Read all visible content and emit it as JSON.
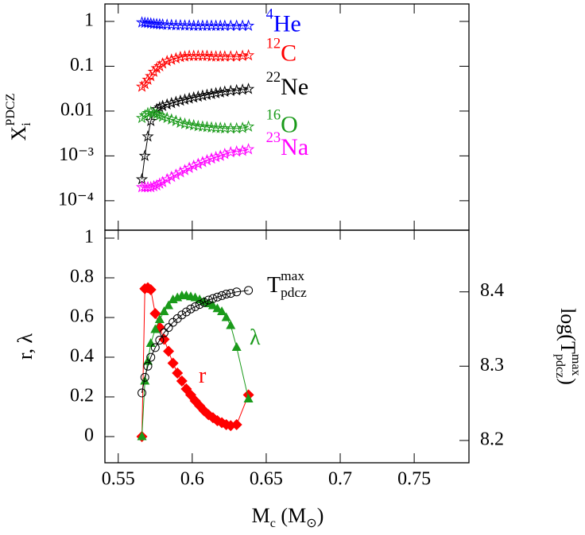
{
  "chart_data": [
    {
      "type": "line",
      "yscale": "log",
      "xlim": [
        0.541,
        0.787
      ],
      "xticks": [
        0.55,
        0.6,
        0.65,
        0.7,
        0.75
      ],
      "xtick_labels": false,
      "ylim": [
        2.2e-05,
        2.45
      ],
      "yticks": [
        1,
        0.1,
        0.01,
        {
          "value": 0.001,
          "label": "10⁻³"
        },
        {
          "value": 0.0001,
          "label": "10⁻⁴"
        }
      ],
      "ylabel": [
        {
          "text": "X",
          "pos": "base"
        },
        {
          "text": "PDCZ",
          "pos": "sup"
        },
        {
          "text": "i",
          "pos": "sub"
        }
      ],
      "x": [
        0.566,
        0.568,
        0.57,
        0.572,
        0.574,
        0.576,
        0.578,
        0.58,
        0.583,
        0.586,
        0.589,
        0.592,
        0.595,
        0.598,
        0.601,
        0.604,
        0.607,
        0.61,
        0.613,
        0.616,
        0.619,
        0.622,
        0.626,
        0.63,
        0.634,
        0.638
      ],
      "series": [
        {
          "name": [
            {
              "text": "4",
              "pos": "sup"
            },
            {
              "text": "He",
              "pos": "base"
            }
          ],
          "color": "#0000ff",
          "marker": "star",
          "values": [
            0.95,
            0.93,
            0.92,
            0.9,
            0.88,
            0.87,
            0.86,
            0.85,
            0.84,
            0.83,
            0.82,
            0.82,
            0.81,
            0.81,
            0.8,
            0.8,
            0.8,
            0.8,
            0.8,
            0.8,
            0.8,
            0.8,
            0.8,
            0.8,
            0.8,
            0.8
          ]
        },
        {
          "name": [
            {
              "text": "12",
              "pos": "sup"
            },
            {
              "text": "C",
              "pos": "base"
            }
          ],
          "color": "#ff0000",
          "marker": "star",
          "values": [
            0.035,
            0.04,
            0.05,
            0.06,
            0.075,
            0.09,
            0.1,
            0.115,
            0.13,
            0.14,
            0.15,
            0.16,
            0.165,
            0.17,
            0.17,
            0.17,
            0.17,
            0.17,
            0.165,
            0.165,
            0.165,
            0.165,
            0.165,
            0.165,
            0.17,
            0.175
          ]
        },
        {
          "name": [
            {
              "text": "22",
              "pos": "sup"
            },
            {
              "text": "Ne",
              "pos": "base"
            }
          ],
          "color": "#000000",
          "marker": "star",
          "values": [
            0.0003,
            0.001,
            0.0027,
            0.006,
            0.009,
            0.011,
            0.012,
            0.013,
            0.014,
            0.015,
            0.016,
            0.017,
            0.018,
            0.019,
            0.02,
            0.021,
            0.022,
            0.023,
            0.024,
            0.025,
            0.026,
            0.027,
            0.028,
            0.029,
            0.03,
            0.031
          ]
        },
        {
          "name": [
            {
              "text": "16",
              "pos": "sup"
            },
            {
              "text": "O",
              "pos": "base"
            }
          ],
          "color": "#1a9a1a",
          "marker": "star",
          "values": [
            0.007,
            0.008,
            0.009,
            0.0095,
            0.009,
            0.0085,
            0.008,
            0.0075,
            0.007,
            0.0065,
            0.006,
            0.0055,
            0.0052,
            0.005,
            0.0048,
            0.0046,
            0.0045,
            0.0044,
            0.0043,
            0.0042,
            0.0042,
            0.0041,
            0.0041,
            0.0041,
            0.0042,
            0.0045
          ]
        },
        {
          "name": [
            {
              "text": "23",
              "pos": "sup"
            },
            {
              "text": "Na",
              "pos": "base"
            }
          ],
          "color": "#ff00ff",
          "marker": "star",
          "values": [
            0.0002,
            0.0002,
            0.0002,
            0.0002,
            0.00021,
            0.00022,
            0.00024,
            0.00026,
            0.0003,
            0.00034,
            0.00038,
            0.00043,
            0.00048,
            0.00054,
            0.0006,
            0.00066,
            0.00073,
            0.0008,
            0.00087,
            0.00094,
            0.001,
            0.0011,
            0.0012,
            0.00125,
            0.0013,
            0.0014
          ]
        }
      ]
    },
    {
      "type": "line",
      "yscale": "linear",
      "xlim": [
        0.541,
        0.787
      ],
      "xticks": [
        0.55,
        0.6,
        0.65,
        0.7,
        0.75
      ],
      "xtick_labels": true,
      "xlabel": [
        {
          "text": "M",
          "pos": "base"
        },
        {
          "text": "c",
          "pos": "sub"
        },
        {
          "text": " (M",
          "pos": "base"
        },
        {
          "text": "⊙",
          "pos": "sub"
        },
        {
          "text": ")",
          "pos": "base"
        }
      ],
      "ylim": [
        -0.132,
        1.04
      ],
      "yticks": [
        0,
        0.2,
        0.4,
        0.6,
        0.8,
        1
      ],
      "ylabel": [
        {
          "text": "r, λ",
          "pos": "base"
        }
      ],
      "y2lim": [
        8.17,
        8.483
      ],
      "y2ticks": [
        8.2,
        8.3,
        8.4
      ],
      "y2label": [
        {
          "text": "log(T",
          "pos": "base"
        },
        {
          "text": "max",
          "pos": "sup"
        },
        {
          "text": "pdcz",
          "pos": "sub"
        },
        {
          "text": ")",
          "pos": "base"
        }
      ],
      "x": [
        0.566,
        0.568,
        0.57,
        0.572,
        0.575,
        0.578,
        0.581,
        0.584,
        0.587,
        0.59,
        0.593,
        0.596,
        0.599,
        0.602,
        0.605,
        0.608,
        0.611,
        0.614,
        0.617,
        0.62,
        0.623,
        0.626,
        0.63,
        0.638
      ],
      "series": [
        {
          "name": [
            {
              "text": "r",
              "pos": "base"
            }
          ],
          "color": "#ff0000",
          "marker": "diamond",
          "values": [
            0,
            0.745,
            0.75,
            0.74,
            0.62,
            0.55,
            0.49,
            0.43,
            0.37,
            0.32,
            0.28,
            0.24,
            0.21,
            0.18,
            0.155,
            0.13,
            0.11,
            0.095,
            0.08,
            0.07,
            0.06,
            0.055,
            0.06,
            0.21
          ]
        },
        {
          "name": [
            {
              "text": "λ",
              "pos": "base"
            }
          ],
          "color": "#1a9a1a",
          "marker": "triangle",
          "values": [
            0,
            0.28,
            0.38,
            0.47,
            0.54,
            0.59,
            0.63,
            0.66,
            0.69,
            0.7,
            0.71,
            0.71,
            0.705,
            0.7,
            0.69,
            0.68,
            0.67,
            0.66,
            0.645,
            0.63,
            0.6,
            0.56,
            0.45,
            0.19
          ]
        },
        {
          "name": [
            {
              "text": "T",
              "pos": "base"
            },
            {
              "text": "max",
              "pos": "sup"
            },
            {
              "text": "pdcz",
              "pos": "sub"
            }
          ],
          "color": "#000000",
          "marker": "circle",
          "axis": "y2",
          "values": [
            8.264,
            8.285,
            8.3,
            8.312,
            8.325,
            8.335,
            8.345,
            8.352,
            8.359,
            8.364,
            8.369,
            8.373,
            8.377,
            8.38,
            8.383,
            8.386,
            8.389,
            8.391,
            8.393,
            8.395,
            8.397,
            8.398,
            8.4,
            8.402
          ]
        }
      ]
    }
  ]
}
